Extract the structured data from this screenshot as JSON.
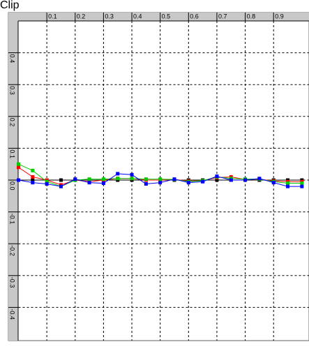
{
  "chart_data": {
    "type": "line",
    "title": "Clip",
    "x": [
      0,
      0.05,
      0.1,
      0.15,
      0.2,
      0.25,
      0.3,
      0.35,
      0.4,
      0.45,
      0.5,
      0.55,
      0.6,
      0.65,
      0.7,
      0.75,
      0.8,
      0.85,
      0.9,
      0.95,
      1.0
    ],
    "series": [
      {
        "color": "#000000",
        "values": [
          0,
          0,
          0,
          0,
          0,
          0,
          0,
          0,
          0,
          0,
          0,
          0,
          0,
          0,
          0,
          0,
          0,
          0,
          0,
          0,
          0
        ]
      },
      {
        "color": "#ff0000",
        "values": [
          0.04,
          0.01,
          0,
          -0.015,
          0,
          -0.005,
          0,
          0.005,
          0.005,
          0,
          0,
          0.002,
          -0.003,
          -0.002,
          0.008,
          0.01,
          0.002,
          0.003,
          -0.003,
          -0.005,
          -0.005
        ]
      },
      {
        "color": "#00cc00",
        "values": [
          0.05,
          0.03,
          -0.005,
          -0.02,
          0,
          0.003,
          0.003,
          0.005,
          0.005,
          0.003,
          0.003,
          0.002,
          -0.005,
          -0.002,
          0.01,
          0.005,
          0.003,
          0.003,
          -0.005,
          -0.01,
          -0.01
        ]
      },
      {
        "color": "#0000ff",
        "values": [
          0,
          -0.008,
          -0.012,
          -0.02,
          0.003,
          -0.008,
          -0.01,
          0.02,
          0.017,
          -0.012,
          -0.008,
          0.003,
          -0.008,
          -0.005,
          0.012,
          0,
          0,
          0.005,
          -0.008,
          -0.02,
          -0.02
        ]
      }
    ],
    "xlim": [
      0,
      1.025
    ],
    "ylim": [
      -0.5,
      0.5
    ],
    "xticks": [
      0.1,
      0.2,
      0.3,
      0.4,
      0.5,
      0.6,
      0.7,
      0.8,
      0.9
    ],
    "yticks": [
      0.4,
      0.3,
      0.2,
      0.1,
      {
        "value": 0,
        "label": "0.0"
      },
      -0.1,
      -0.2,
      -0.3,
      -0.4
    ],
    "grid": true
  }
}
